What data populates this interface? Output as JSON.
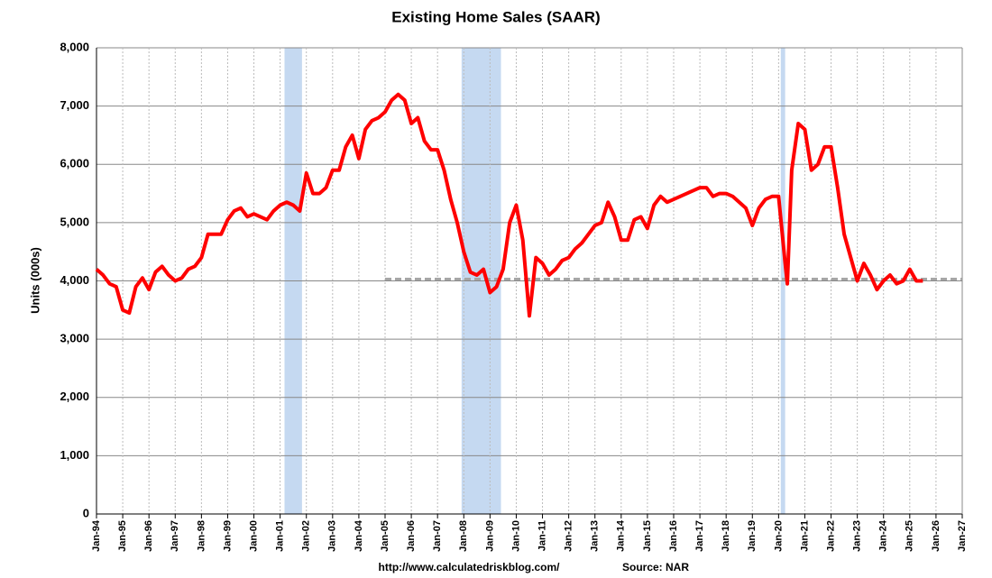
{
  "chart_data": {
    "type": "line",
    "title": "Existing Home Sales (SAAR)",
    "y_label": "Units (000s)",
    "source_url": "http://www.calculatedriskblog.com/",
    "source": "Source: NAR",
    "xlim": [
      "1994-01",
      "2027-01"
    ],
    "ylim": [
      0,
      8000
    ],
    "yticks": [
      0,
      {
        "value": 1000,
        "label": "1,000"
      },
      {
        "value": 2000,
        "label": "2,000"
      },
      {
        "value": 3000,
        "label": "3,000"
      },
      {
        "value": 4000,
        "label": "4,000"
      },
      {
        "value": 5000,
        "label": "5,000"
      },
      {
        "value": 6000,
        "label": "6,000"
      },
      {
        "value": 7000,
        "label": "7,000"
      },
      {
        "value": 8000,
        "label": "8,000"
      }
    ],
    "xticks": [
      {
        "value": "1994-01",
        "label": "Jan-94"
      },
      {
        "value": "1995-01",
        "label": "Jan-95"
      },
      {
        "value": "1996-01",
        "label": "Jan-96"
      },
      {
        "value": "1997-01",
        "label": "Jan-97"
      },
      {
        "value": "1998-01",
        "label": "Jan-98"
      },
      {
        "value": "1999-01",
        "label": "Jan-99"
      },
      {
        "value": "2000-01",
        "label": "Jan-00"
      },
      {
        "value": "2001-01",
        "label": "Jan-01"
      },
      {
        "value": "2002-01",
        "label": "Jan-02"
      },
      {
        "value": "2003-01",
        "label": "Jan-03"
      },
      {
        "value": "2004-01",
        "label": "Jan-04"
      },
      {
        "value": "2005-01",
        "label": "Jan-05"
      },
      {
        "value": "2006-01",
        "label": "Jan-06"
      },
      {
        "value": "2007-01",
        "label": "Jan-07"
      },
      {
        "value": "2008-01",
        "label": "Jan-08"
      },
      {
        "value": "2009-01",
        "label": "Jan-09"
      },
      {
        "value": "2010-01",
        "label": "Jan-10"
      },
      {
        "value": "2011-01",
        "label": "Jan-11"
      },
      {
        "value": "2012-01",
        "label": "Jan-12"
      },
      {
        "value": "2013-01",
        "label": "Jan-13"
      },
      {
        "value": "2014-01",
        "label": "Jan-14"
      },
      {
        "value": "2015-01",
        "label": "Jan-15"
      },
      {
        "value": "2016-01",
        "label": "Jan-16"
      },
      {
        "value": "2017-01",
        "label": "Jan-17"
      },
      {
        "value": "2018-01",
        "label": "Jan-18"
      },
      {
        "value": "2019-01",
        "label": "Jan-19"
      },
      {
        "value": "2020-01",
        "label": "Jan-20"
      },
      {
        "value": "2021-01",
        "label": "Jan-21"
      },
      {
        "value": "2022-01",
        "label": "Jan-22"
      },
      {
        "value": "2023-01",
        "label": "Jan-23"
      },
      {
        "value": "2024-01",
        "label": "Jan-24"
      },
      {
        "value": "2025-01",
        "label": "Jan-25"
      },
      {
        "value": "2026-01",
        "label": "Jan-26"
      },
      {
        "value": "2027-01",
        "label": "Jan-27"
      }
    ],
    "grid": true,
    "shaded_periods": [
      [
        "2001-03",
        "2001-11"
      ],
      [
        "2007-12",
        "2009-06"
      ],
      [
        "2020-02",
        "2020-04"
      ]
    ],
    "shade_color": "#c5d9f1",
    "reference_line": {
      "value": 4030,
      "from": "2005-01",
      "color": "#a6a6a6"
    },
    "x": [
      "1994-01",
      "1994-04",
      "1994-07",
      "1994-10",
      "1995-01",
      "1995-04",
      "1995-07",
      "1995-10",
      "1996-01",
      "1996-04",
      "1996-07",
      "1996-10",
      "1997-01",
      "1997-04",
      "1997-07",
      "1997-10",
      "1998-01",
      "1998-04",
      "1998-07",
      "1998-10",
      "1999-01",
      "1999-04",
      "1999-07",
      "1999-10",
      "2000-01",
      "2000-04",
      "2000-07",
      "2000-10",
      "2001-01",
      "2001-04",
      "2001-07",
      "2001-10",
      "2002-01",
      "2002-04",
      "2002-07",
      "2002-10",
      "2003-01",
      "2003-04",
      "2003-07",
      "2003-10",
      "2004-01",
      "2004-04",
      "2004-07",
      "2004-10",
      "2005-01",
      "2005-04",
      "2005-07",
      "2005-10",
      "2006-01",
      "2006-04",
      "2006-07",
      "2006-10",
      "2007-01",
      "2007-04",
      "2007-07",
      "2007-10",
      "2008-01",
      "2008-04",
      "2008-07",
      "2008-10",
      "2009-01",
      "2009-04",
      "2009-07",
      "2009-10",
      "2010-01",
      "2010-04",
      "2010-07",
      "2010-10",
      "2011-01",
      "2011-04",
      "2011-07",
      "2011-10",
      "2012-01",
      "2012-04",
      "2012-07",
      "2012-10",
      "2013-01",
      "2013-04",
      "2013-07",
      "2013-10",
      "2014-01",
      "2014-04",
      "2014-07",
      "2014-10",
      "2015-01",
      "2015-04",
      "2015-07",
      "2015-10",
      "2016-01",
      "2016-04",
      "2016-07",
      "2016-10",
      "2017-01",
      "2017-04",
      "2017-07",
      "2017-10",
      "2018-01",
      "2018-04",
      "2018-07",
      "2018-10",
      "2019-01",
      "2019-04",
      "2019-07",
      "2019-10",
      "2020-01",
      "2020-04",
      "2020-05",
      "2020-07",
      "2020-10",
      "2021-01",
      "2021-04",
      "2021-07",
      "2021-10",
      "2022-01",
      "2022-04",
      "2022-07",
      "2022-10",
      "2023-01",
      "2023-04",
      "2023-07",
      "2023-10",
      "2024-01",
      "2024-04",
      "2024-07",
      "2024-10",
      "2025-01",
      "2025-04",
      "2025-07"
    ],
    "series": [
      {
        "name": "Existing Home Sales",
        "color": "#ff0000",
        "values": [
          4200,
          4100,
          3950,
          3900,
          3500,
          3450,
          3900,
          4050,
          3850,
          4150,
          4250,
          4100,
          4000,
          4050,
          4200,
          4250,
          4400,
          4800,
          4800,
          4800,
          5050,
          5200,
          5250,
          5100,
          5150,
          5100,
          5050,
          5200,
          5300,
          5350,
          5300,
          5200,
          5850,
          5500,
          5500,
          5600,
          5900,
          5900,
          6300,
          6500,
          6100,
          6600,
          6750,
          6800,
          6900,
          7100,
          7200,
          7100,
          6700,
          6800,
          6400,
          6250,
          6250,
          5900,
          5400,
          5000,
          4500,
          4150,
          4100,
          4200,
          3800,
          3900,
          4200,
          5000,
          5300,
          4700,
          3400,
          4400,
          4300,
          4100,
          4200,
          4350,
          4400,
          4550,
          4650,
          4800,
          4950,
          5000,
          5350,
          5100,
          4700,
          4700,
          5050,
          5100,
          4900,
          5300,
          5450,
          5350,
          5400,
          5450,
          5500,
          5550,
          5600,
          5600,
          5450,
          5500,
          5500,
          5450,
          5350,
          5250,
          4950,
          5250,
          5400,
          5450,
          5450,
          4300,
          3950,
          5900,
          6700,
          6600,
          5900,
          6000,
          6300,
          6300,
          5600,
          4800,
          4400,
          4000,
          4300,
          4100,
          3850,
          4000,
          4100,
          3950,
          4000,
          4200,
          4000,
          4000
        ]
      }
    ]
  }
}
